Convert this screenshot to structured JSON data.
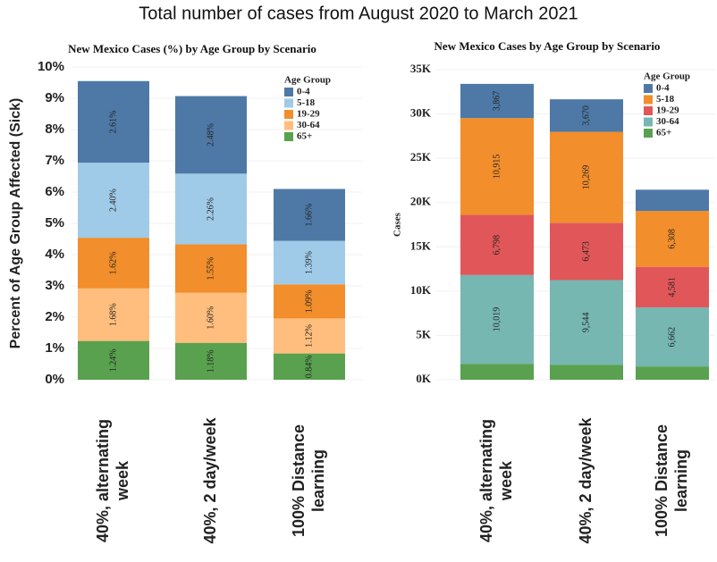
{
  "title": "Total number of cases from August 2020 to March 2021",
  "chart_data": [
    {
      "type": "stacked_bar",
      "title": "New Mexico Cases (%) by Age Group by Scenario",
      "ylabel": "Percent of Age Group Affected (Sick)",
      "legend_title": "Age Group",
      "legend": "top-right",
      "categories": [
        [
          "40%, alternating",
          "week"
        ],
        [
          "40%, 2 day/week"
        ],
        [
          "100% Distance",
          "learning"
        ]
      ],
      "ylim": [
        0,
        10
      ],
      "yticks": [
        {
          "value": 0,
          "label": "0%"
        },
        {
          "value": 1,
          "label": "1%"
        },
        {
          "value": 2,
          "label": "2%"
        },
        {
          "value": 3,
          "label": "3%"
        },
        {
          "value": 4,
          "label": "4%"
        },
        {
          "value": 5,
          "label": "5%"
        },
        {
          "value": 6,
          "label": "6%"
        },
        {
          "value": 7,
          "label": "7%"
        },
        {
          "value": 8,
          "label": "8%"
        },
        {
          "value": 9,
          "label": "9%"
        },
        {
          "value": 10,
          "label": "10%"
        }
      ],
      "series": [
        {
          "name": "0-4",
          "color": "#4e79a7",
          "values": [
            2.61,
            2.48,
            1.66
          ],
          "value_labels": [
            "2.61%",
            "2.48%",
            "1.66%"
          ]
        },
        {
          "name": "5-18",
          "color": "#a0cbe8",
          "values": [
            2.4,
            2.26,
            1.39
          ],
          "value_labels": [
            "2.40%",
            "2.26%",
            "1.39%"
          ]
        },
        {
          "name": "19-29",
          "color": "#f28e2b",
          "values": [
            1.62,
            1.55,
            1.09
          ],
          "value_labels": [
            "1.62%",
            "1.55%",
            "1.09%"
          ]
        },
        {
          "name": "30-64",
          "color": "#ffbe7d",
          "values": [
            1.68,
            1.6,
            1.12
          ],
          "value_labels": [
            "1.68%",
            "1.60%",
            "1.12%"
          ]
        },
        {
          "name": "65+",
          "color": "#59a14f",
          "values": [
            1.24,
            1.18,
            0.84
          ],
          "value_labels": [
            "1.24%",
            "1.18%",
            "0.84%"
          ]
        }
      ]
    },
    {
      "type": "stacked_bar",
      "title": "New Mexico Cases by Age Group by Scenario",
      "ylabel": "Cases",
      "legend_title": "Age Group",
      "legend": "top-right",
      "categories": [
        [
          "40%, alternating",
          "week"
        ],
        [
          "40%, 2 day/week"
        ],
        [
          "100% Distance",
          "learning"
        ]
      ],
      "ylim": [
        0,
        35000
      ],
      "yticks": [
        {
          "value": 0,
          "label": "0K"
        },
        {
          "value": 5000,
          "label": "5K"
        },
        {
          "value": 10000,
          "label": "10K"
        },
        {
          "value": 15000,
          "label": "15K"
        },
        {
          "value": 20000,
          "label": "20K"
        },
        {
          "value": 25000,
          "label": "25K"
        },
        {
          "value": 30000,
          "label": "30K"
        },
        {
          "value": 35000,
          "label": "35K"
        }
      ],
      "series": [
        {
          "name": "0-4",
          "color": "#4e79a7",
          "values": [
            3867,
            3670,
            2400
          ],
          "value_labels": [
            "3,867",
            "3,670",
            null
          ]
        },
        {
          "name": "5-18",
          "color": "#f28e2b",
          "values": [
            10915,
            10269,
            6308
          ],
          "value_labels": [
            "10,915",
            "10,269",
            "6,308"
          ]
        },
        {
          "name": "19-29",
          "color": "#e15759",
          "values": [
            6798,
            6473,
            4581
          ],
          "value_labels": [
            "6,798",
            "6,473",
            "4,581"
          ]
        },
        {
          "name": "30-64",
          "color": "#76b7b2",
          "values": [
            10019,
            9544,
            6662
          ],
          "value_labels": [
            "10,019",
            "9,544",
            "6,662"
          ]
        },
        {
          "name": "65+",
          "color": "#59a14f",
          "values": [
            1800,
            1700,
            1500
          ],
          "value_labels": [
            null,
            null,
            null
          ]
        }
      ]
    }
  ]
}
